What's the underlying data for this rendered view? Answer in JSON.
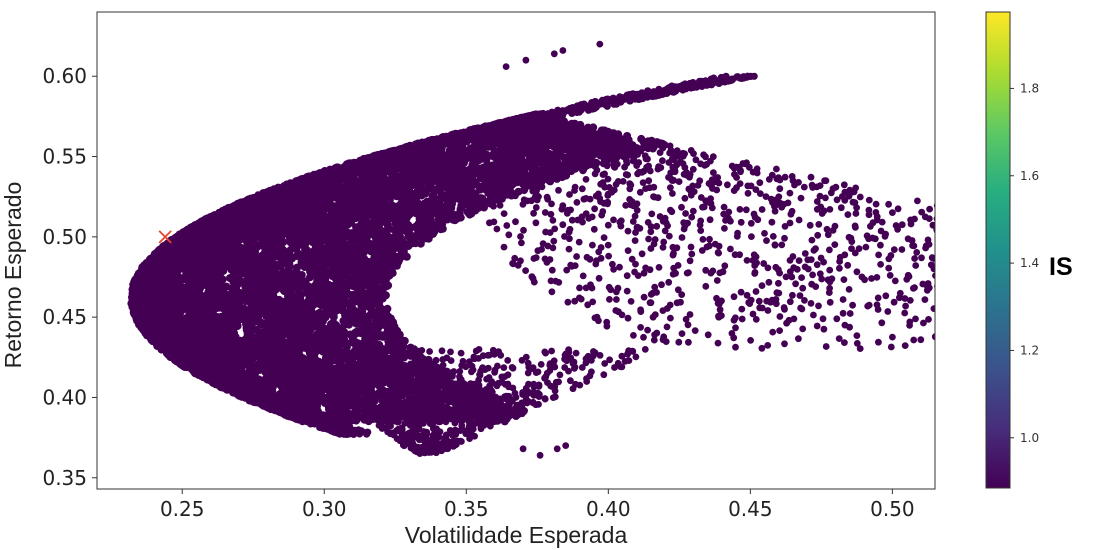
{
  "chart_data": {
    "type": "scatter",
    "title": "",
    "xlabel": "Volatilidade Esperada",
    "ylabel": "Retorno Esperado",
    "xlim": [
      0.22,
      0.515
    ],
    "ylim": [
      0.343,
      0.64
    ],
    "x_ticks": [
      "0.25",
      "0.30",
      "0.35",
      "0.40",
      "0.45",
      "0.50"
    ],
    "x_tick_values": [
      0.25,
      0.3,
      0.35,
      0.4,
      0.45,
      0.5
    ],
    "y_ticks": [
      "0.35",
      "0.40",
      "0.45",
      "0.50",
      "0.55",
      "0.60"
    ],
    "y_tick_values": [
      0.35,
      0.4,
      0.45,
      0.5,
      0.55,
      0.6
    ],
    "grid": false,
    "colormap": "viridis",
    "colorbar": {
      "title": "IS",
      "range": [
        0.885,
        1.975
      ],
      "ticks": [
        "1.0",
        "1.2",
        "1.4",
        "1.6",
        "1.8"
      ],
      "tick_values": [
        1.0,
        1.2,
        1.4,
        1.6,
        1.8
      ]
    },
    "frontier": {
      "min_volatility": 0.232,
      "min_volatility_return": 0.462,
      "top_return": 0.618,
      "bottom_return": 0.365
    },
    "outer_points": [
      {
        "x": 0.397,
        "y": 0.62
      },
      {
        "x": 0.381,
        "y": 0.614
      },
      {
        "x": 0.384,
        "y": 0.616
      },
      {
        "x": 0.371,
        "y": 0.61
      },
      {
        "x": 0.364,
        "y": 0.606
      },
      {
        "x": 0.495,
        "y": 0.462
      },
      {
        "x": 0.474,
        "y": 0.457
      },
      {
        "x": 0.473,
        "y": 0.469
      },
      {
        "x": 0.46,
        "y": 0.465
      },
      {
        "x": 0.452,
        "y": 0.466
      },
      {
        "x": 0.447,
        "y": 0.455
      },
      {
        "x": 0.441,
        "y": 0.482
      },
      {
        "x": 0.385,
        "y": 0.37
      },
      {
        "x": 0.382,
        "y": 0.368
      },
      {
        "x": 0.376,
        "y": 0.364
      },
      {
        "x": 0.37,
        "y": 0.368
      }
    ],
    "marked_portfolio": {
      "x": 0.244,
      "y": 0.5,
      "marker": "x",
      "color": "#e8452c"
    }
  }
}
